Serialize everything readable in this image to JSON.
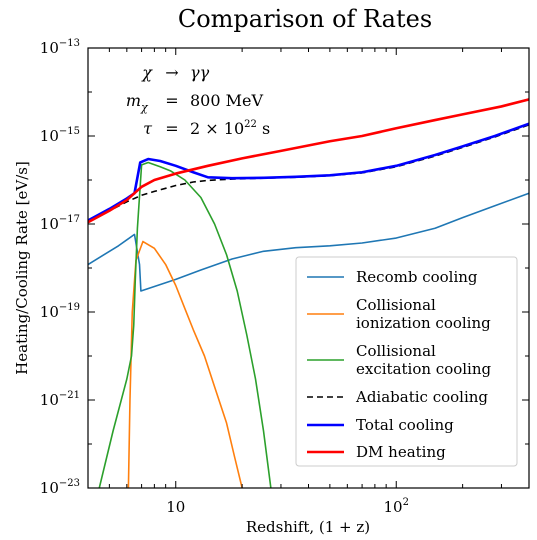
{
  "chart_data": {
    "type": "line",
    "title": "Comparison of Rates",
    "xlabel": "Redshift, (1 + z)",
    "ylabel": "Heating/Cooling Rate [eV/s]",
    "xscale": "log",
    "yscale": "log",
    "xlim": [
      4,
      400
    ],
    "ylim": [
      1e-23,
      1e-13
    ],
    "x_ticks": [
      {
        "value": 10,
        "base": "10",
        "exp": ""
      },
      {
        "value": 100,
        "base": "10",
        "exp": "2"
      }
    ],
    "y_ticks": [
      {
        "value": 1e-13,
        "base": "10",
        "exp": "−13"
      },
      {
        "value": 1e-15,
        "base": "10",
        "exp": "−15"
      },
      {
        "value": 1e-17,
        "base": "10",
        "exp": "−17"
      },
      {
        "value": 1e-19,
        "base": "10",
        "exp": "−19"
      },
      {
        "value": 1e-21,
        "base": "10",
        "exp": "−21"
      },
      {
        "value": 1e-23,
        "base": "10",
        "exp": "−23"
      }
    ],
    "grid": false,
    "legend_position": "lower-right",
    "annotation": {
      "line1": {
        "lhs": "χ",
        "op": "→",
        "rhs": "γγ"
      },
      "line2": {
        "lhs": "m",
        "sub": "χ",
        "op": "=",
        "rhs": "800 MeV"
      },
      "line3": {
        "lhs": "τ",
        "op": "=",
        "rhs_base": "2 × 10",
        "rhs_exp": "22",
        "rhs_unit": " s"
      }
    },
    "series": [
      {
        "name": "Recomb cooling",
        "color": "#1f77b4",
        "width": 1.6,
        "dash": "",
        "points": [
          [
            4,
            1.2e-18
          ],
          [
            5.5,
            3.2e-18
          ],
          [
            6.5,
            5.8e-18
          ],
          [
            6.85,
            1.2e-18
          ],
          [
            6.95,
            3e-19
          ],
          [
            8,
            3.8e-19
          ],
          [
            10,
            5.5e-19
          ],
          [
            13,
            9e-19
          ],
          [
            18,
            1.6e-18
          ],
          [
            25,
            2.4e-18
          ],
          [
            35,
            2.9e-18
          ],
          [
            50,
            3.2e-18
          ],
          [
            70,
            3.7e-18
          ],
          [
            100,
            4.8e-18
          ],
          [
            150,
            8e-18
          ],
          [
            200,
            1.4e-17
          ],
          [
            280,
            2.6e-17
          ],
          [
            400,
            5e-17
          ]
        ]
      },
      {
        "name": "Collisional ionization cooling",
        "color": "#ff7f0e",
        "width": 1.6,
        "dash": "",
        "points": [
          [
            6.1,
            1e-23
          ],
          [
            6.2,
            1e-21
          ],
          [
            6.35,
            1e-19
          ],
          [
            6.6,
            1.5e-18
          ],
          [
            7.1,
            4e-18
          ],
          [
            8,
            2.8e-18
          ],
          [
            9,
            1.2e-18
          ],
          [
            10,
            4e-19
          ],
          [
            11,
            1.2e-19
          ],
          [
            12,
            4e-20
          ],
          [
            13.5,
            1e-20
          ],
          [
            15,
            2e-21
          ],
          [
            17,
            3e-22
          ],
          [
            18.5,
            5e-23
          ],
          [
            20,
            1e-23
          ]
        ]
      },
      {
        "name": "Collisional excitation cooling",
        "color": "#2ca02c",
        "width": 1.6,
        "dash": "",
        "points": [
          [
            4.5,
            1e-23
          ],
          [
            5.2,
            2e-22
          ],
          [
            6.0,
            3e-21
          ],
          [
            6.3,
            1e-20
          ],
          [
            6.45,
            5e-20
          ],
          [
            6.55,
            5e-19
          ],
          [
            6.7,
            8e-18
          ],
          [
            7.0,
            2.2e-16
          ],
          [
            7.5,
            2.5e-16
          ],
          [
            8.5,
            2e-16
          ],
          [
            9.5,
            1.6e-16
          ],
          [
            11,
            1e-16
          ],
          [
            13,
            4e-17
          ],
          [
            15,
            1e-17
          ],
          [
            17,
            2e-18
          ],
          [
            19,
            3e-19
          ],
          [
            21,
            3e-20
          ],
          [
            23,
            3e-21
          ],
          [
            25,
            2e-22
          ],
          [
            27,
            1e-23
          ]
        ]
      },
      {
        "name": "Adiabatic cooling",
        "color": "#000000",
        "width": 1.6,
        "dash": "6,4",
        "points": [
          [
            4,
            1.1e-17
          ],
          [
            5,
            2e-17
          ],
          [
            6,
            3.2e-17
          ],
          [
            7,
            4.5e-17
          ],
          [
            8,
            5.5e-17
          ],
          [
            10,
            7.5e-17
          ],
          [
            12,
            9e-17
          ],
          [
            14,
            9.8e-17
          ],
          [
            18,
            1.05e-16
          ],
          [
            25,
            1.1e-16
          ],
          [
            35,
            1.15e-16
          ],
          [
            50,
            1.25e-16
          ],
          [
            70,
            1.45e-16
          ],
          [
            100,
            2e-16
          ],
          [
            150,
            3.5e-16
          ],
          [
            200,
            5.5e-16
          ],
          [
            280,
            9.5e-16
          ],
          [
            400,
            1.8e-15
          ]
        ]
      },
      {
        "name": "Total cooling",
        "color": "#0000ff",
        "width": 2.6,
        "dash": "",
        "points": [
          [
            4,
            1.2e-17
          ],
          [
            5,
            2.2e-17
          ],
          [
            6,
            3.8e-17
          ],
          [
            6.5,
            5e-17
          ],
          [
            6.9,
            2.5e-16
          ],
          [
            7.5,
            3e-16
          ],
          [
            8.5,
            2.7e-16
          ],
          [
            10,
            2.1e-16
          ],
          [
            12,
            1.5e-16
          ],
          [
            14,
            1.15e-16
          ],
          [
            18,
            1.1e-16
          ],
          [
            25,
            1.12e-16
          ],
          [
            35,
            1.18e-16
          ],
          [
            50,
            1.28e-16
          ],
          [
            70,
            1.5e-16
          ],
          [
            100,
            2.1e-16
          ],
          [
            150,
            3.7e-16
          ],
          [
            200,
            5.8e-16
          ],
          [
            280,
            1e-15
          ],
          [
            400,
            1.9e-15
          ]
        ]
      },
      {
        "name": "DM heating",
        "color": "#ff0000",
        "width": 2.6,
        "dash": "",
        "points": [
          [
            4,
            1.1e-17
          ],
          [
            5,
            2e-17
          ],
          [
            6,
            3.5e-17
          ],
          [
            7,
            7e-17
          ],
          [
            8,
            1e-16
          ],
          [
            10,
            1.4e-16
          ],
          [
            14,
            2.1e-16
          ],
          [
            20,
            3.1e-16
          ],
          [
            30,
            4.6e-16
          ],
          [
            50,
            7.6e-16
          ],
          [
            70,
            1e-15
          ],
          [
            100,
            1.5e-15
          ],
          [
            150,
            2.3e-15
          ],
          [
            200,
            3.1e-15
          ],
          [
            300,
            4.7e-15
          ],
          [
            400,
            6.8e-15
          ]
        ]
      }
    ]
  }
}
